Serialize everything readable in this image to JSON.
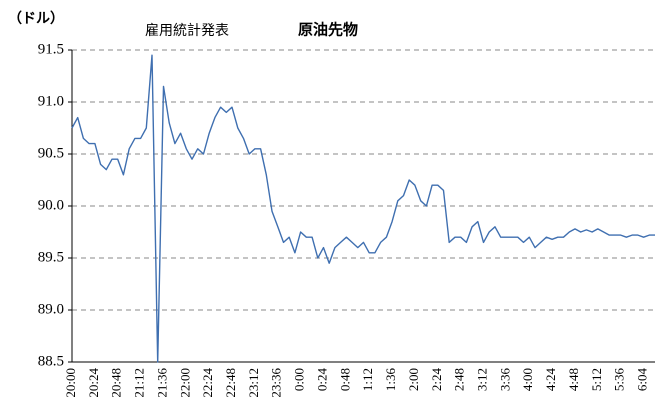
{
  "chart_data": {
    "type": "line",
    "title": "原油先物",
    "annotations": [
      "（ドル）",
      "雇用統計発表"
    ],
    "categories": [
      "20:00",
      null,
      null,
      null,
      "20:24",
      null,
      null,
      null,
      "20:48",
      null,
      null,
      null,
      "21:12",
      null,
      null,
      null,
      "21:36",
      null,
      null,
      null,
      "22:00",
      null,
      null,
      null,
      "22:24",
      null,
      null,
      null,
      "22:48",
      null,
      null,
      null,
      "23:12",
      null,
      null,
      null,
      "23:36",
      null,
      null,
      null,
      "0:00",
      null,
      null,
      null,
      "0:24",
      null,
      null,
      null,
      "0:48",
      null,
      null,
      null,
      "1:12",
      null,
      null,
      null,
      "1:36",
      null,
      null,
      null,
      "2:00",
      null,
      null,
      null,
      "2:24",
      null,
      null,
      null,
      "2:48",
      null,
      null,
      null,
      "3:12",
      null,
      null,
      null,
      "3:36",
      null,
      null,
      null,
      "4:00",
      null,
      null,
      null,
      "4:24",
      null,
      null,
      null,
      "4:48",
      null,
      null,
      null,
      "5:12",
      null,
      null,
      null,
      "5:36",
      null,
      null,
      null,
      "6:04",
      null,
      null
    ],
    "series": [
      {
        "name": "原油先物",
        "color": "#3f6fb0",
        "values": [
          90.75,
          90.85,
          90.65,
          90.6,
          90.6,
          90.4,
          90.35,
          90.45,
          90.45,
          90.3,
          90.55,
          90.65,
          90.65,
          90.75,
          91.45,
          88.5,
          91.15,
          90.8,
          90.6,
          90.7,
          90.55,
          90.45,
          90.55,
          90.5,
          90.7,
          90.85,
          90.95,
          90.9,
          90.95,
          90.75,
          90.65,
          90.5,
          90.55,
          90.55,
          90.3,
          89.95,
          89.8,
          89.65,
          89.7,
          89.55,
          89.75,
          89.7,
          89.7,
          89.5,
          89.6,
          89.45,
          89.6,
          89.65,
          89.7,
          89.65,
          89.6,
          89.65,
          89.55,
          89.55,
          89.65,
          89.7,
          89.85,
          90.05,
          90.1,
          90.25,
          90.2,
          90.05,
          90.0,
          90.2,
          90.2,
          90.15,
          89.65,
          89.7,
          89.7,
          89.65,
          89.8,
          89.85,
          89.65,
          89.75,
          89.8,
          89.7,
          89.7,
          89.7,
          89.7,
          89.65,
          89.7,
          89.6,
          89.65,
          89.7,
          89.68,
          89.7,
          89.7,
          89.75,
          89.78,
          89.75,
          89.77,
          89.75,
          89.78,
          89.75,
          89.72,
          89.72,
          89.72,
          89.7,
          89.72,
          89.72,
          89.7,
          89.72,
          89.72
        ]
      }
    ],
    "ylim": [
      88.5,
      91.5
    ],
    "yticks": [
      88.5,
      {
        "value": 89,
        "label": "89.0"
      },
      89.5,
      {
        "value": 90,
        "label": "90.0"
      },
      90.5,
      {
        "value": 91,
        "label": "91.0"
      },
      91.5
    ],
    "grid": true
  }
}
